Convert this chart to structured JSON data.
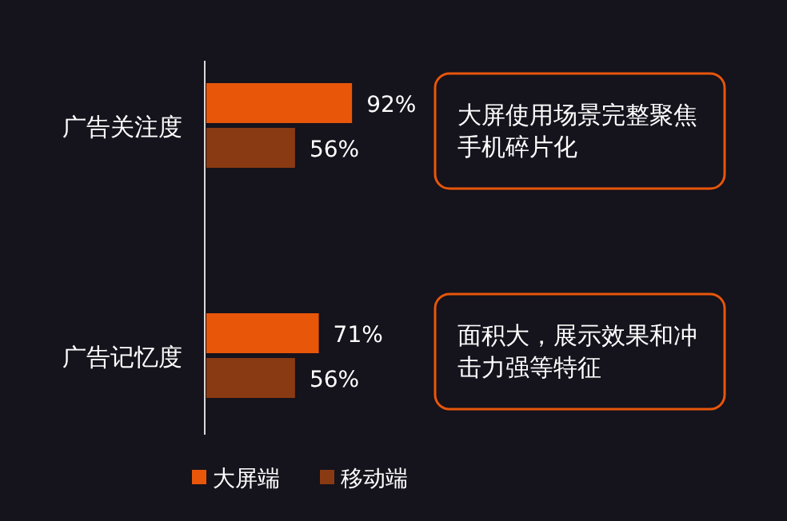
{
  "chart_data": {
    "type": "bar",
    "orientation": "horizontal",
    "categories": [
      "广告关注度",
      "广告记忆度"
    ],
    "series": [
      {
        "name": "大屏端",
        "color": "#e8560a",
        "values": [
          92,
          71
        ],
        "value_labels": [
          "92%",
          "71%"
        ]
      },
      {
        "name": "移动端",
        "color": "#8a3a12",
        "values": [
          56,
          56
        ],
        "value_labels": [
          "56%",
          "56%"
        ]
      }
    ],
    "annotations": [
      "大屏使用场景完整聚焦手机碎片化",
      "面积大，展示效果和冲击力强等特征"
    ],
    "legend": "bottom"
  }
}
